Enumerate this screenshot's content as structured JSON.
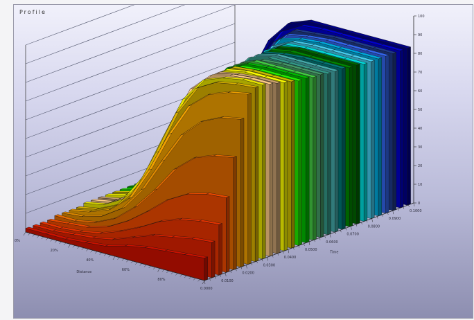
{
  "chart_data": {
    "type": "area",
    "title": "Profile",
    "xlabel": "Distance",
    "ylabel": "Time",
    "zlabel": "",
    "x_ticks": [
      "0%",
      "20%",
      "40%",
      "60%",
      "80%"
    ],
    "y_ticks": [
      "0.0000",
      "0.0100",
      "0.0200",
      "0.0300",
      "0.0400",
      "0.0500",
      "0.0600",
      "0.0700",
      "0.0800",
      "0.0900",
      "0.1000"
    ],
    "z_ticks": [
      "0",
      "10",
      "20",
      "30",
      "40",
      "50",
      "60",
      "70",
      "80",
      "90",
      "100"
    ],
    "z_range": [
      0,
      100
    ],
    "grid": true,
    "legend": "none",
    "series": [
      {
        "color": "#cc1100",
        "values": [
          2,
          2,
          2,
          3,
          4,
          7,
          9,
          10,
          11,
          12
        ]
      },
      {
        "color": "#dd2200",
        "values": [
          2,
          2,
          3,
          4,
          6,
          10,
          14,
          16,
          18,
          19
        ]
      },
      {
        "color": "#e83300",
        "values": [
          2,
          2,
          3,
          5,
          9,
          14,
          20,
          24,
          26,
          27
        ]
      },
      {
        "color": "#ee4a00",
        "values": [
          2,
          3,
          4,
          7,
          13,
          21,
          30,
          36,
          39,
          40
        ]
      },
      {
        "color": "#e46a00",
        "values": [
          3,
          3,
          5,
          10,
          19,
          31,
          45,
          54,
          58,
          60
        ]
      },
      {
        "color": "#dd8800",
        "values": [
          3,
          4,
          7,
          14,
          27,
          45,
          62,
          72,
          77,
          79
        ]
      },
      {
        "color": "#f0a000",
        "values": [
          3,
          5,
          9,
          18,
          36,
          58,
          76,
          85,
          89,
          91
        ]
      },
      {
        "color": "#d8b000",
        "values": [
          3,
          5,
          10,
          22,
          44,
          68,
          84,
          90,
          92,
          93
        ]
      },
      {
        "color": "#e8e400",
        "values": [
          4,
          6,
          12,
          27,
          51,
          74,
          87,
          91,
          93,
          93
        ]
      },
      {
        "color": "#ffcc88",
        "values": [
          4,
          6,
          13,
          30,
          56,
          78,
          88,
          91,
          92,
          92
        ]
      },
      {
        "color": "#c8a070",
        "values": [
          4,
          6,
          13,
          31,
          58,
          79,
          88,
          90,
          91,
          91
        ]
      },
      {
        "color": "#ffff00",
        "values": [
          4,
          7,
          14,
          33,
          60,
          80,
          88,
          90,
          90,
          90
        ]
      },
      {
        "color": "#ccbb00",
        "values": [
          4,
          7,
          15,
          35,
          62,
          81,
          88,
          89,
          89,
          89
        ]
      },
      {
        "color": "#22ee00",
        "values": [
          4,
          7,
          16,
          37,
          64,
          81,
          87,
          88,
          88,
          88
        ]
      },
      {
        "color": "#00bb00",
        "values": [
          4,
          8,
          17,
          39,
          66,
          82,
          87,
          88,
          88,
          88
        ]
      },
      {
        "color": "#44cc44",
        "values": [
          4,
          8,
          18,
          41,
          67,
          82,
          87,
          87,
          87,
          87
        ]
      },
      {
        "color": "#449966",
        "values": [
          5,
          8,
          19,
          43,
          68,
          82,
          86,
          87,
          87,
          87
        ]
      },
      {
        "color": "#339988",
        "values": [
          5,
          9,
          20,
          45,
          70,
          83,
          86,
          86,
          86,
          86
        ]
      },
      {
        "color": "#44aaaa",
        "values": [
          5,
          9,
          21,
          47,
          71,
          83,
          86,
          86,
          86,
          86
        ]
      },
      {
        "color": "#007777",
        "values": [
          5,
          9,
          22,
          49,
          72,
          83,
          85,
          86,
          86,
          86
        ]
      },
      {
        "color": "#008800",
        "values": [
          5,
          10,
          24,
          52,
          73,
          83,
          85,
          85,
          85,
          85
        ]
      },
      {
        "color": "#006600",
        "values": [
          5,
          11,
          26,
          55,
          75,
          83,
          85,
          85,
          85,
          85
        ]
      },
      {
        "color": "#00dddd",
        "values": [
          6,
          13,
          30,
          59,
          77,
          83,
          84,
          84,
          84,
          84
        ]
      },
      {
        "color": "#44ccee",
        "values": [
          6,
          15,
          34,
          62,
          78,
          83,
          84,
          84,
          84,
          84
        ]
      },
      {
        "color": "#00aadd",
        "values": [
          7,
          18,
          40,
          66,
          80,
          83,
          84,
          84,
          84,
          84
        ]
      },
      {
        "color": "#3366ee",
        "values": [
          8,
          21,
          45,
          69,
          81,
          83,
          84,
          84,
          84,
          84
        ]
      },
      {
        "color": "#1f3a8a",
        "values": [
          10,
          26,
          52,
          73,
          82,
          83,
          84,
          84,
          84,
          84
        ]
      },
      {
        "color": "#0000cc",
        "values": [
          14,
          34,
          60,
          77,
          83,
          84,
          84,
          84,
          84,
          84
        ]
      },
      {
        "color": "#000088",
        "values": [
          20,
          45,
          68,
          80,
          84,
          84,
          84,
          84,
          84,
          84
        ]
      }
    ]
  }
}
